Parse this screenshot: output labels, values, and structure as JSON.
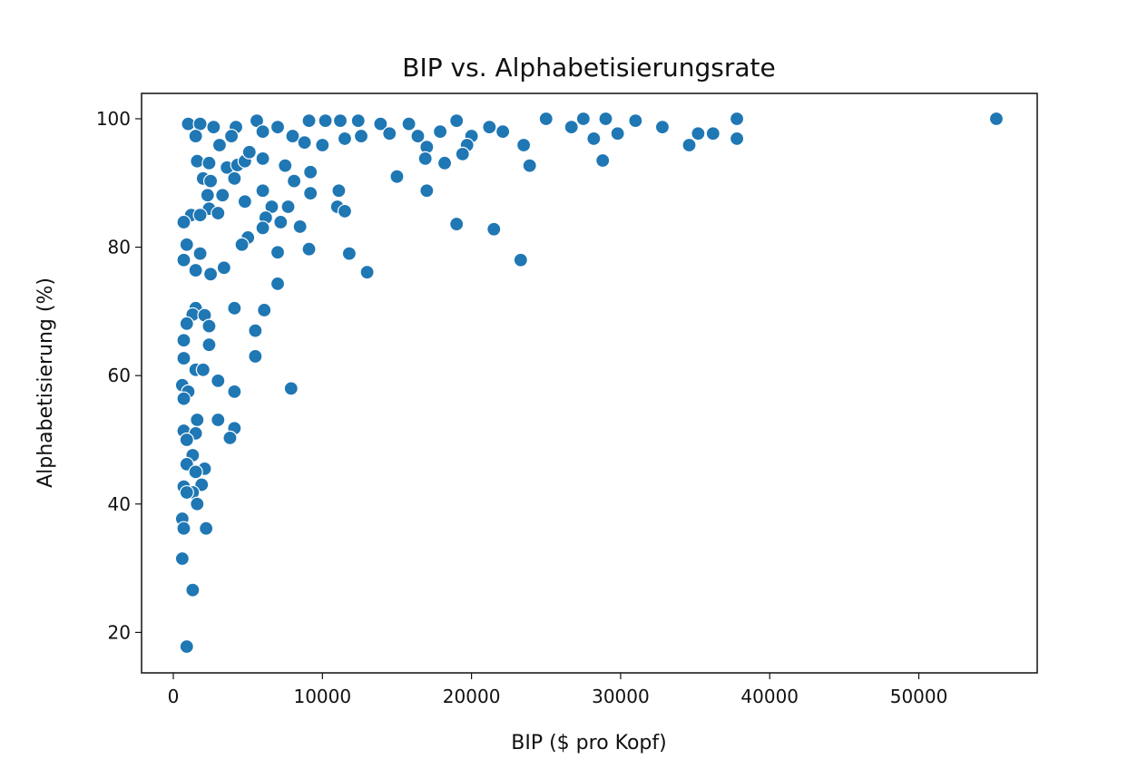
{
  "chart_data": {
    "type": "scatter",
    "title": "BIP vs. Alphabetisierungsrate",
    "xlabel": "BIP ($ pro Kopf)",
    "ylabel": "Alphabetisierung (%)",
    "xlim": [
      -2130,
      57940
    ],
    "ylim": [
      13.7,
      103.95
    ],
    "xticks": [
      0,
      10000,
      20000,
      30000,
      40000,
      50000
    ],
    "yticks": [
      20,
      40,
      60,
      80,
      100
    ],
    "grid": false,
    "color": "#1f77b4",
    "edgecolor": "#ffffff",
    "points": [
      [
        1000,
        99.2
      ],
      [
        1800,
        99.2
      ],
      [
        2700,
        98.7
      ],
      [
        4200,
        98.7
      ],
      [
        5600,
        99.7
      ],
      [
        7000,
        98.7
      ],
      [
        9100,
        99.7
      ],
      [
        10200,
        99.7
      ],
      [
        11200,
        99.7
      ],
      [
        12400,
        99.7
      ],
      [
        13900,
        99.2
      ],
      [
        15800,
        99.2
      ],
      [
        19000,
        99.7
      ],
      [
        21200,
        98.7
      ],
      [
        22100,
        98
      ],
      [
        25000,
        100
      ],
      [
        27500,
        100
      ],
      [
        29000,
        100
      ],
      [
        31000,
        99.7
      ],
      [
        32800,
        98.7
      ],
      [
        37800,
        100
      ],
      [
        55200,
        100
      ],
      [
        1500,
        97.3
      ],
      [
        3100,
        95.9
      ],
      [
        3900,
        97.3
      ],
      [
        6000,
        98
      ],
      [
        8000,
        97.3
      ],
      [
        8800,
        96.3
      ],
      [
        10000,
        95.9
      ],
      [
        11500,
        96.9
      ],
      [
        12600,
        97.3
      ],
      [
        14500,
        97.7
      ],
      [
        16400,
        97.3
      ],
      [
        17900,
        98
      ],
      [
        20000,
        97.3
      ],
      [
        23500,
        95.9
      ],
      [
        26700,
        98.7
      ],
      [
        28200,
        96.9
      ],
      [
        29800,
        97.7
      ],
      [
        34600,
        95.9
      ],
      [
        35200,
        97.7
      ],
      [
        36200,
        97.7
      ],
      [
        37800,
        96.9
      ],
      [
        17000,
        95.6
      ],
      [
        19700,
        95.9
      ],
      [
        19400,
        94.5
      ],
      [
        1600,
        93.4
      ],
      [
        2400,
        93.1
      ],
      [
        3600,
        92.4
      ],
      [
        4300,
        92.8
      ],
      [
        4800,
        93.4
      ],
      [
        6000,
        93.8
      ],
      [
        7500,
        92.7
      ],
      [
        9200,
        91.7
      ],
      [
        16900,
        93.8
      ],
      [
        18200,
        93.1
      ],
      [
        23900,
        92.7
      ],
      [
        28800,
        93.5
      ],
      [
        15000,
        91
      ],
      [
        5100,
        94.8
      ],
      [
        2000,
        90.7
      ],
      [
        2500,
        90.3
      ],
      [
        4100,
        90.7
      ],
      [
        6000,
        88.8
      ],
      [
        8100,
        90.3
      ],
      [
        9200,
        88.4
      ],
      [
        11100,
        88.8
      ],
      [
        17000,
        88.8
      ],
      [
        2300,
        88.1
      ],
      [
        3300,
        88.1
      ],
      [
        4800,
        87.1
      ],
      [
        2400,
        86
      ],
      [
        3000,
        85.3
      ],
      [
        6600,
        86.3
      ],
      [
        7700,
        86.3
      ],
      [
        11000,
        86.3
      ],
      [
        11500,
        85.6
      ],
      [
        6200,
        84.6
      ],
      [
        1200,
        85
      ],
      [
        1800,
        85
      ],
      [
        700,
        83.9
      ],
      [
        7200,
        83.9
      ],
      [
        19000,
        83.6
      ],
      [
        6000,
        83
      ],
      [
        8500,
        83.2
      ],
      [
        21500,
        82.8
      ],
      [
        5000,
        81.5
      ],
      [
        4600,
        80.4
      ],
      [
        900,
        80.4
      ],
      [
        1800,
        79
      ],
      [
        7000,
        79.2
      ],
      [
        9100,
        79.7
      ],
      [
        11800,
        79
      ],
      [
        700,
        78
      ],
      [
        23300,
        78
      ],
      [
        1500,
        76.4
      ],
      [
        3400,
        76.8
      ],
      [
        2500,
        75.8
      ],
      [
        13000,
        76.1
      ],
      [
        7000,
        74.3
      ],
      [
        4100,
        70.5
      ],
      [
        1500,
        70.5
      ],
      [
        1300,
        69.5
      ],
      [
        2100,
        69.4
      ],
      [
        900,
        68.1
      ],
      [
        6100,
        70.2
      ],
      [
        2400,
        67.7
      ],
      [
        5500,
        67
      ],
      [
        700,
        65.5
      ],
      [
        2400,
        64.8
      ],
      [
        700,
        62.7
      ],
      [
        5500,
        63
      ],
      [
        1500,
        60.9
      ],
      [
        2000,
        60.9
      ],
      [
        3000,
        59.2
      ],
      [
        7900,
        58
      ],
      [
        600,
        58.5
      ],
      [
        1000,
        57.5
      ],
      [
        4100,
        57.5
      ],
      [
        700,
        56.4
      ],
      [
        1600,
        53.1
      ],
      [
        3000,
        53.1
      ],
      [
        4100,
        51.8
      ],
      [
        700,
        51.4
      ],
      [
        1500,
        51
      ],
      [
        900,
        50
      ],
      [
        3800,
        50.3
      ],
      [
        1300,
        47.6
      ],
      [
        900,
        46.2
      ],
      [
        2100,
        45.5
      ],
      [
        1500,
        45
      ],
      [
        700,
        42.7
      ],
      [
        1900,
        43
      ],
      [
        1300,
        41.8
      ],
      [
        1600,
        40
      ],
      [
        900,
        41.8
      ],
      [
        600,
        37.7
      ],
      [
        2200,
        36.2
      ],
      [
        700,
        36.2
      ],
      [
        600,
        31.5
      ],
      [
        1300,
        26.6
      ],
      [
        900,
        17.8
      ]
    ]
  }
}
